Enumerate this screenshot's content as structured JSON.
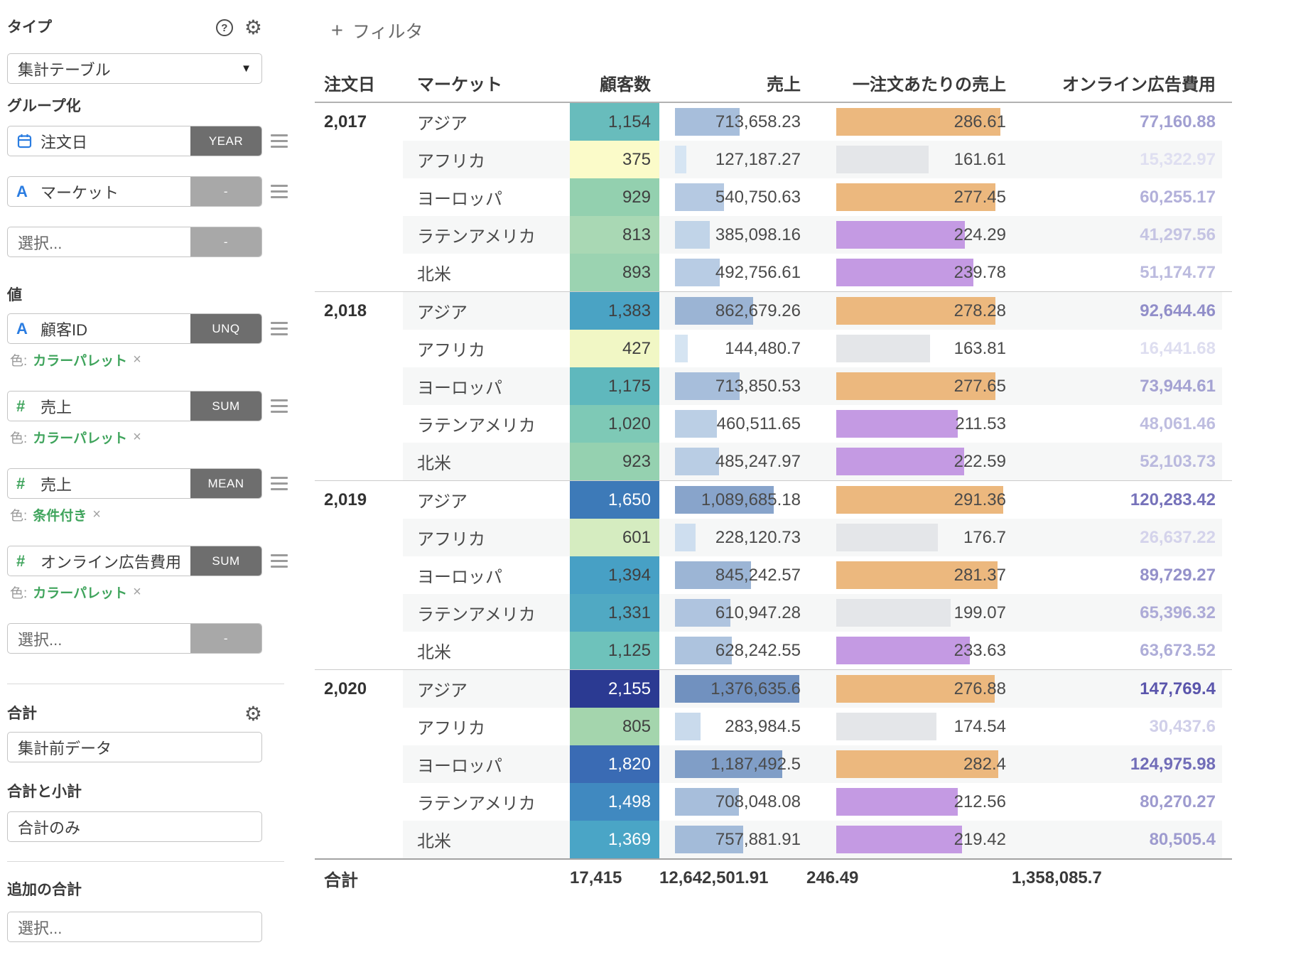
{
  "sidebar": {
    "type_label": "タイプ",
    "type_value": "集計テーブル",
    "group_label": "グループ化",
    "group_fields": [
      {
        "label": "注文日",
        "icon": "calendar",
        "badge": "YEAR",
        "badge_style": "dark",
        "menu": true,
        "placeholder": false
      },
      {
        "label": "マーケット",
        "icon": "text",
        "badge": "-",
        "badge_style": "light",
        "menu": true,
        "placeholder": false
      },
      {
        "label": "選択...",
        "icon": "",
        "badge": "-",
        "badge_style": "light",
        "menu": false,
        "placeholder": true
      }
    ],
    "values_label": "値",
    "value_fields": [
      {
        "label": "顧客ID",
        "icon": "text",
        "badge": "UNQ",
        "badge_style": "dark",
        "menu": true,
        "placeholder": false,
        "color_prefix": "色:",
        "color_link": "カラーパレット",
        "close": "×"
      },
      {
        "label": "売上",
        "icon": "number",
        "badge": "SUM",
        "badge_style": "dark",
        "menu": true,
        "placeholder": false,
        "color_prefix": "色:",
        "color_link": "カラーパレット",
        "close": "×"
      },
      {
        "label": "売上",
        "icon": "number",
        "badge": "MEAN",
        "badge_style": "dark",
        "menu": true,
        "placeholder": false,
        "color_prefix": "色:",
        "color_link": "条件付き",
        "close": "×"
      },
      {
        "label": "オンライン広告費用",
        "icon": "number",
        "badge": "SUM",
        "badge_style": "dark",
        "menu": true,
        "placeholder": false,
        "color_prefix": "色:",
        "color_link": "カラーパレット",
        "close": "×"
      },
      {
        "label": "選択...",
        "icon": "",
        "badge": "-",
        "badge_style": "light",
        "menu": false,
        "placeholder": true
      }
    ],
    "totals_label": "合計",
    "totals_value": "集計前データ",
    "subtotal_label": "合計と小計",
    "subtotal_value": "合計のみ",
    "additional_label": "追加の合計",
    "additional_value": "選択..."
  },
  "toolbar": {
    "filter_plus": "+",
    "filter_label": "フィルタ"
  },
  "table": {
    "headers": {
      "date": "注文日",
      "market": "マーケット",
      "customers": "顧客数",
      "sales": "売上",
      "mean": "一注文あたりの売上",
      "ads": "オンライン広告費用"
    },
    "scales": {
      "sales_min": 127187.27,
      "sales_max": 1376635.6,
      "sales_color_min": "#d6e5f3",
      "sales_color_max": "#7191bf",
      "mean_max": 291.36,
      "mean_high": 270,
      "mean_low": 200,
      "mean_colors": {
        "high": "#ecb87e",
        "mid": "#c49ae3",
        "low": "#e4e6e9"
      },
      "ads_min": 15322.97,
      "ads_max": 147769.4,
      "ads_color_min": "#dfdff1",
      "ads_color_max": "#5a55ac",
      "stripe": "#f6f7f7"
    },
    "groups": [
      {
        "year": "2,017",
        "rows": [
          {
            "region": "アジア",
            "customers": 1154,
            "customers_label": "1,154",
            "cell": "#68bcbc",
            "white": false,
            "sales": 713658.23,
            "sales_label": "713,658.23",
            "mean": 286.61,
            "mean_label": "286.61",
            "ads": 77160.88,
            "ads_label": "77,160.88"
          },
          {
            "region": "アフリカ",
            "customers": 375,
            "customers_label": "375",
            "cell": "#fbfbc9",
            "white": false,
            "sales": 127187.27,
            "sales_label": "127,187.27",
            "mean": 161.61,
            "mean_label": "161.61",
            "ads": 15322.97,
            "ads_label": "15,322.97"
          },
          {
            "region": "ヨーロッパ",
            "customers": 929,
            "customers_label": "929",
            "cell": "#93d0af",
            "white": false,
            "sales": 540750.63,
            "sales_label": "540,750.63",
            "mean": 277.45,
            "mean_label": "277.45",
            "ads": 60255.17,
            "ads_label": "60,255.17"
          },
          {
            "region": "ラテンアメリカ",
            "customers": 813,
            "customers_label": "813",
            "cell": "#a9d8b4",
            "white": false,
            "sales": 385098.16,
            "sales_label": "385,098.16",
            "mean": 224.29,
            "mean_label": "224.29",
            "ads": 41297.56,
            "ads_label": "41,297.56"
          },
          {
            "region": "北米",
            "customers": 893,
            "customers_label": "893",
            "cell": "#9bd3b1",
            "white": false,
            "sales": 492756.61,
            "sales_label": "492,756.61",
            "mean": 239.78,
            "mean_label": "239.78",
            "ads": 51174.77,
            "ads_label": "51,174.77"
          }
        ]
      },
      {
        "year": "2,018",
        "rows": [
          {
            "region": "アジア",
            "customers": 1383,
            "customers_label": "1,383",
            "cell": "#4aa3c4",
            "white": false,
            "sales": 862679.26,
            "sales_label": "862,679.26",
            "mean": 278.28,
            "mean_label": "278.28",
            "ads": 92644.46,
            "ads_label": "92,644.46"
          },
          {
            "region": "アフリカ",
            "customers": 427,
            "customers_label": "427",
            "cell": "#f1f7c5",
            "white": false,
            "sales": 144480.7,
            "sales_label": "144,480.7",
            "mean": 163.81,
            "mean_label": "163.81",
            "ads": 16441.68,
            "ads_label": "16,441.68"
          },
          {
            "region": "ヨーロッパ",
            "customers": 1175,
            "customers_label": "1,175",
            "cell": "#5fb8bd",
            "white": false,
            "sales": 713850.53,
            "sales_label": "713,850.53",
            "mean": 277.65,
            "mean_label": "277.65",
            "ads": 73944.61,
            "ads_label": "73,944.61"
          },
          {
            "region": "ラテンアメリカ",
            "customers": 1020,
            "customers_label": "1,020",
            "cell": "#7ec9b6",
            "white": false,
            "sales": 460511.65,
            "sales_label": "460,511.65",
            "mean": 211.53,
            "mean_label": "211.53",
            "ads": 48061.46,
            "ads_label": "48,061.46"
          },
          {
            "region": "北米",
            "customers": 923,
            "customers_label": "923",
            "cell": "#95d1b0",
            "white": false,
            "sales": 485247.97,
            "sales_label": "485,247.97",
            "mean": 222.59,
            "mean_label": "222.59",
            "ads": 52103.73,
            "ads_label": "52,103.73"
          }
        ]
      },
      {
        "year": "2,019",
        "rows": [
          {
            "region": "アジア",
            "customers": 1650,
            "customers_label": "1,650",
            "cell": "#3d7ab8",
            "white": true,
            "sales": 1089685.18,
            "sales_label": "1,089,685.18",
            "mean": 291.36,
            "mean_label": "291.36",
            "ads": 120283.42,
            "ads_label": "120,283.42"
          },
          {
            "region": "アフリカ",
            "customers": 601,
            "customers_label": "601",
            "cell": "#d5ecc0",
            "white": false,
            "sales": 228120.73,
            "sales_label": "228,120.73",
            "mean": 176.7,
            "mean_label": "176.7",
            "ads": 26637.22,
            "ads_label": "26,637.22"
          },
          {
            "region": "ヨーロッパ",
            "customers": 1394,
            "customers_label": "1,394",
            "cell": "#47a0c5",
            "white": false,
            "sales": 845242.57,
            "sales_label": "845,242.57",
            "mean": 281.37,
            "mean_label": "281.37",
            "ads": 89729.27,
            "ads_label": "89,729.27"
          },
          {
            "region": "ラテンアメリカ",
            "customers": 1331,
            "customers_label": "1,331",
            "cell": "#50a9c3",
            "white": false,
            "sales": 610947.28,
            "sales_label": "610,947.28",
            "mean": 199.07,
            "mean_label": "199.07",
            "ads": 65396.32,
            "ads_label": "65,396.32"
          },
          {
            "region": "北米",
            "customers": 1125,
            "customers_label": "1,125",
            "cell": "#6ec2bb",
            "white": false,
            "sales": 628242.55,
            "sales_label": "628,242.55",
            "mean": 233.63,
            "mean_label": "233.63",
            "ads": 63673.52,
            "ads_label": "63,673.52"
          }
        ]
      },
      {
        "year": "2,020",
        "rows": [
          {
            "region": "アジア",
            "customers": 2155,
            "customers_label": "2,155",
            "cell": "#2b3a92",
            "white": true,
            "sales": 1376635.6,
            "sales_label": "1,376,635.6",
            "mean": 276.88,
            "mean_label": "276.88",
            "ads": 147769.4,
            "ads_label": "147,769.4"
          },
          {
            "region": "アフリカ",
            "customers": 805,
            "customers_label": "805",
            "cell": "#a4d5ad",
            "white": false,
            "sales": 283984.5,
            "sales_label": "283,984.5",
            "mean": 174.54,
            "mean_label": "174.54",
            "ads": 30437.6,
            "ads_label": "30,437.6"
          },
          {
            "region": "ヨーロッパ",
            "customers": 1820,
            "customers_label": "1,820",
            "cell": "#3a6bb4",
            "white": true,
            "sales": 1187492.5,
            "sales_label": "1,187,492.5",
            "mean": 282.4,
            "mean_label": "282.4",
            "ads": 124975.98,
            "ads_label": "124,975.98"
          },
          {
            "region": "ラテンアメリカ",
            "customers": 1498,
            "customers_label": "1,498",
            "cell": "#4089c0",
            "white": true,
            "sales": 708048.08,
            "sales_label": "708,048.08",
            "mean": 212.56,
            "mean_label": "212.56",
            "ads": 80270.27,
            "ads_label": "80,270.27"
          },
          {
            "region": "北米",
            "customers": 1369,
            "customers_label": "1,369",
            "cell": "#4aa5c6",
            "white": true,
            "sales": 757881.91,
            "sales_label": "757,881.91",
            "mean": 219.42,
            "mean_label": "219.42",
            "ads": 80505.4,
            "ads_label": "80,505.4"
          }
        ]
      }
    ],
    "total": {
      "label": "合計",
      "customers": "17,415",
      "sales": "12,642,501.91",
      "mean": "246.49",
      "ads": "1,358,085.7"
    }
  },
  "colors": {
    "accent_blue": "#2b7de1",
    "accent_green": "#3fa45c",
    "badge_dark": "#6e6e6e",
    "badge_light": "#a8a8a8"
  }
}
